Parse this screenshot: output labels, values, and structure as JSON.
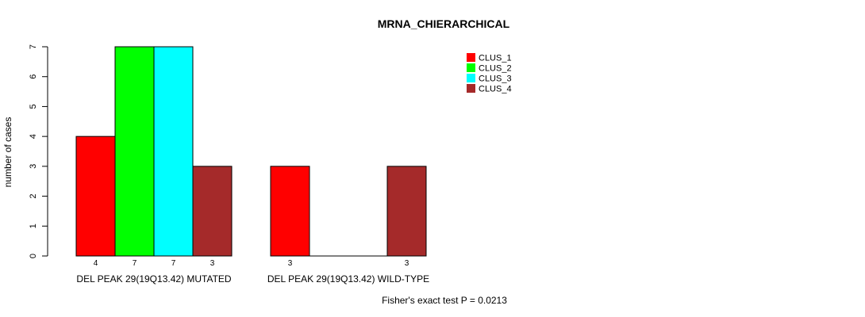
{
  "chart_data": {
    "type": "bar",
    "title": "MRNA_CHIERARCHICAL",
    "xlabel": "",
    "ylabel": "number of cases",
    "ylim": [
      0,
      7
    ],
    "yticks": [
      0,
      1,
      2,
      3,
      4,
      5,
      6,
      7
    ],
    "categories": [
      "DEL PEAK 29(19Q13.42) MUTATED",
      "DEL PEAK 29(19Q13.42) WILD-TYPE"
    ],
    "series": [
      {
        "name": "CLUS_1",
        "color": "#ff0000",
        "values": [
          4,
          3
        ]
      },
      {
        "name": "CLUS_2",
        "color": "#00ff00",
        "values": [
          7,
          0
        ]
      },
      {
        "name": "CLUS_3",
        "color": "#00ffff",
        "values": [
          7,
          0
        ]
      },
      {
        "name": "CLUS_4",
        "color": "#a52a2a",
        "values": [
          3,
          3
        ]
      }
    ],
    "bar_labels": [
      [
        "4",
        "7",
        "7",
        "3"
      ],
      [
        "3",
        "",
        "",
        "3"
      ]
    ],
    "legend_position": "top-right",
    "annotation": "Fisher's exact test P = 0.0213",
    "grid": false
  }
}
